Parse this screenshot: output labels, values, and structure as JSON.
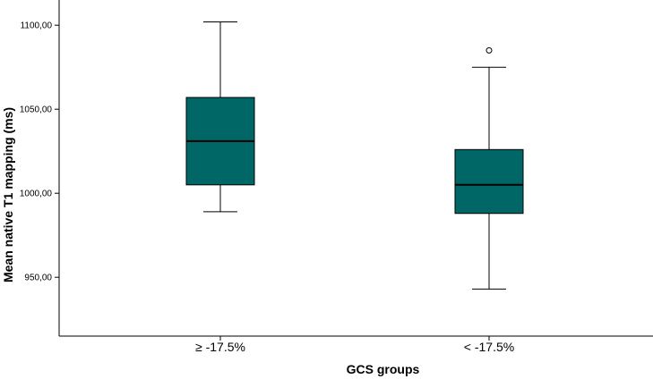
{
  "chart_data": {
    "type": "boxplot",
    "xlabel": "GCS groups",
    "ylabel": "Mean native T1 mapping (ms)",
    "ylim": [
      915,
      1115
    ],
    "yticks": [
      950,
      1000,
      1050,
      1100
    ],
    "ytick_labels": [
      "950,00",
      "1000,00",
      "1050,00",
      "1100,00"
    ],
    "grid": false,
    "box_color": "#006666",
    "categories": [
      "≥ -17.5%",
      "< -17.5%"
    ],
    "boxes": [
      {
        "category": "≥ -17.5%",
        "min": 989,
        "q1": 1005,
        "median": 1031,
        "q3": 1057,
        "max": 1102,
        "outliers": []
      },
      {
        "category": "< -17.5%",
        "min": 943,
        "q1": 988,
        "median": 1005,
        "q3": 1026,
        "max": 1075,
        "outliers": [
          1085
        ]
      }
    ]
  }
}
